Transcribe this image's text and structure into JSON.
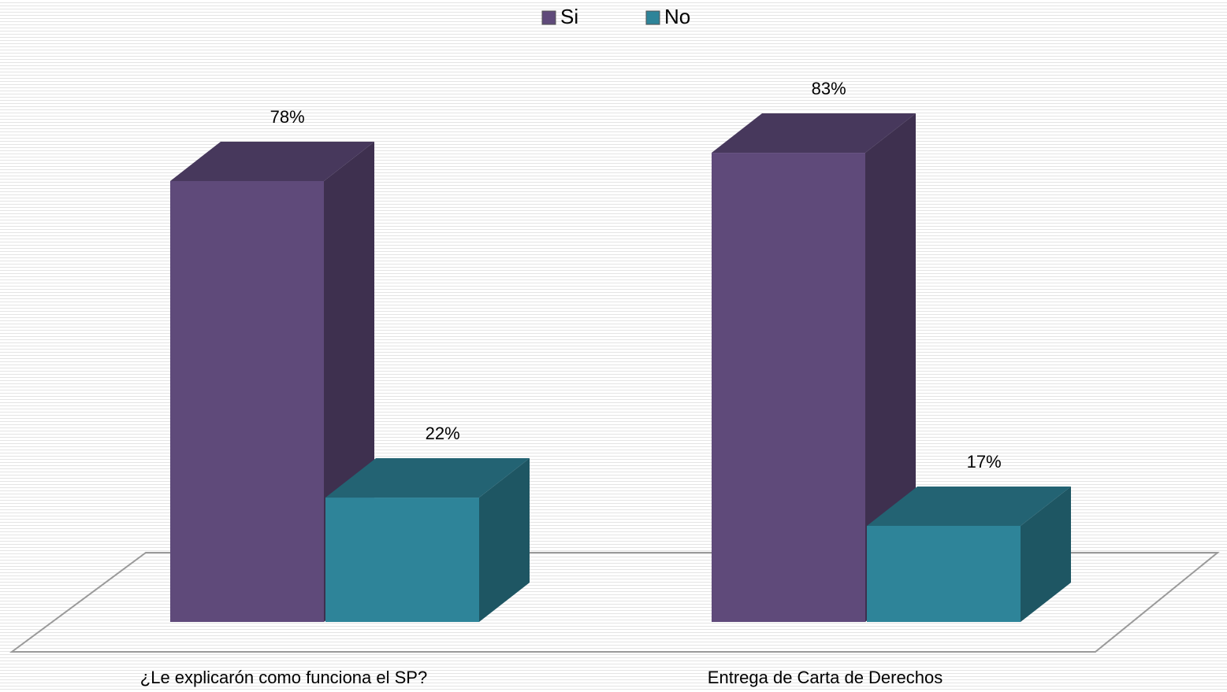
{
  "chart_data": {
    "type": "bar3d",
    "categories": [
      "¿Le explicarón como funciona el SP?",
      "Entrega de Carta de Derechos"
    ],
    "series": [
      {
        "name": "Si",
        "color": "#5f4a7a",
        "values": [
          78,
          83
        ],
        "value_labels": [
          "78%",
          "83%"
        ]
      },
      {
        "name": "No",
        "color": "#2e8499",
        "values": [
          22,
          17
        ],
        "value_labels": [
          "22%",
          "17%"
        ]
      }
    ],
    "legend": "top"
  }
}
